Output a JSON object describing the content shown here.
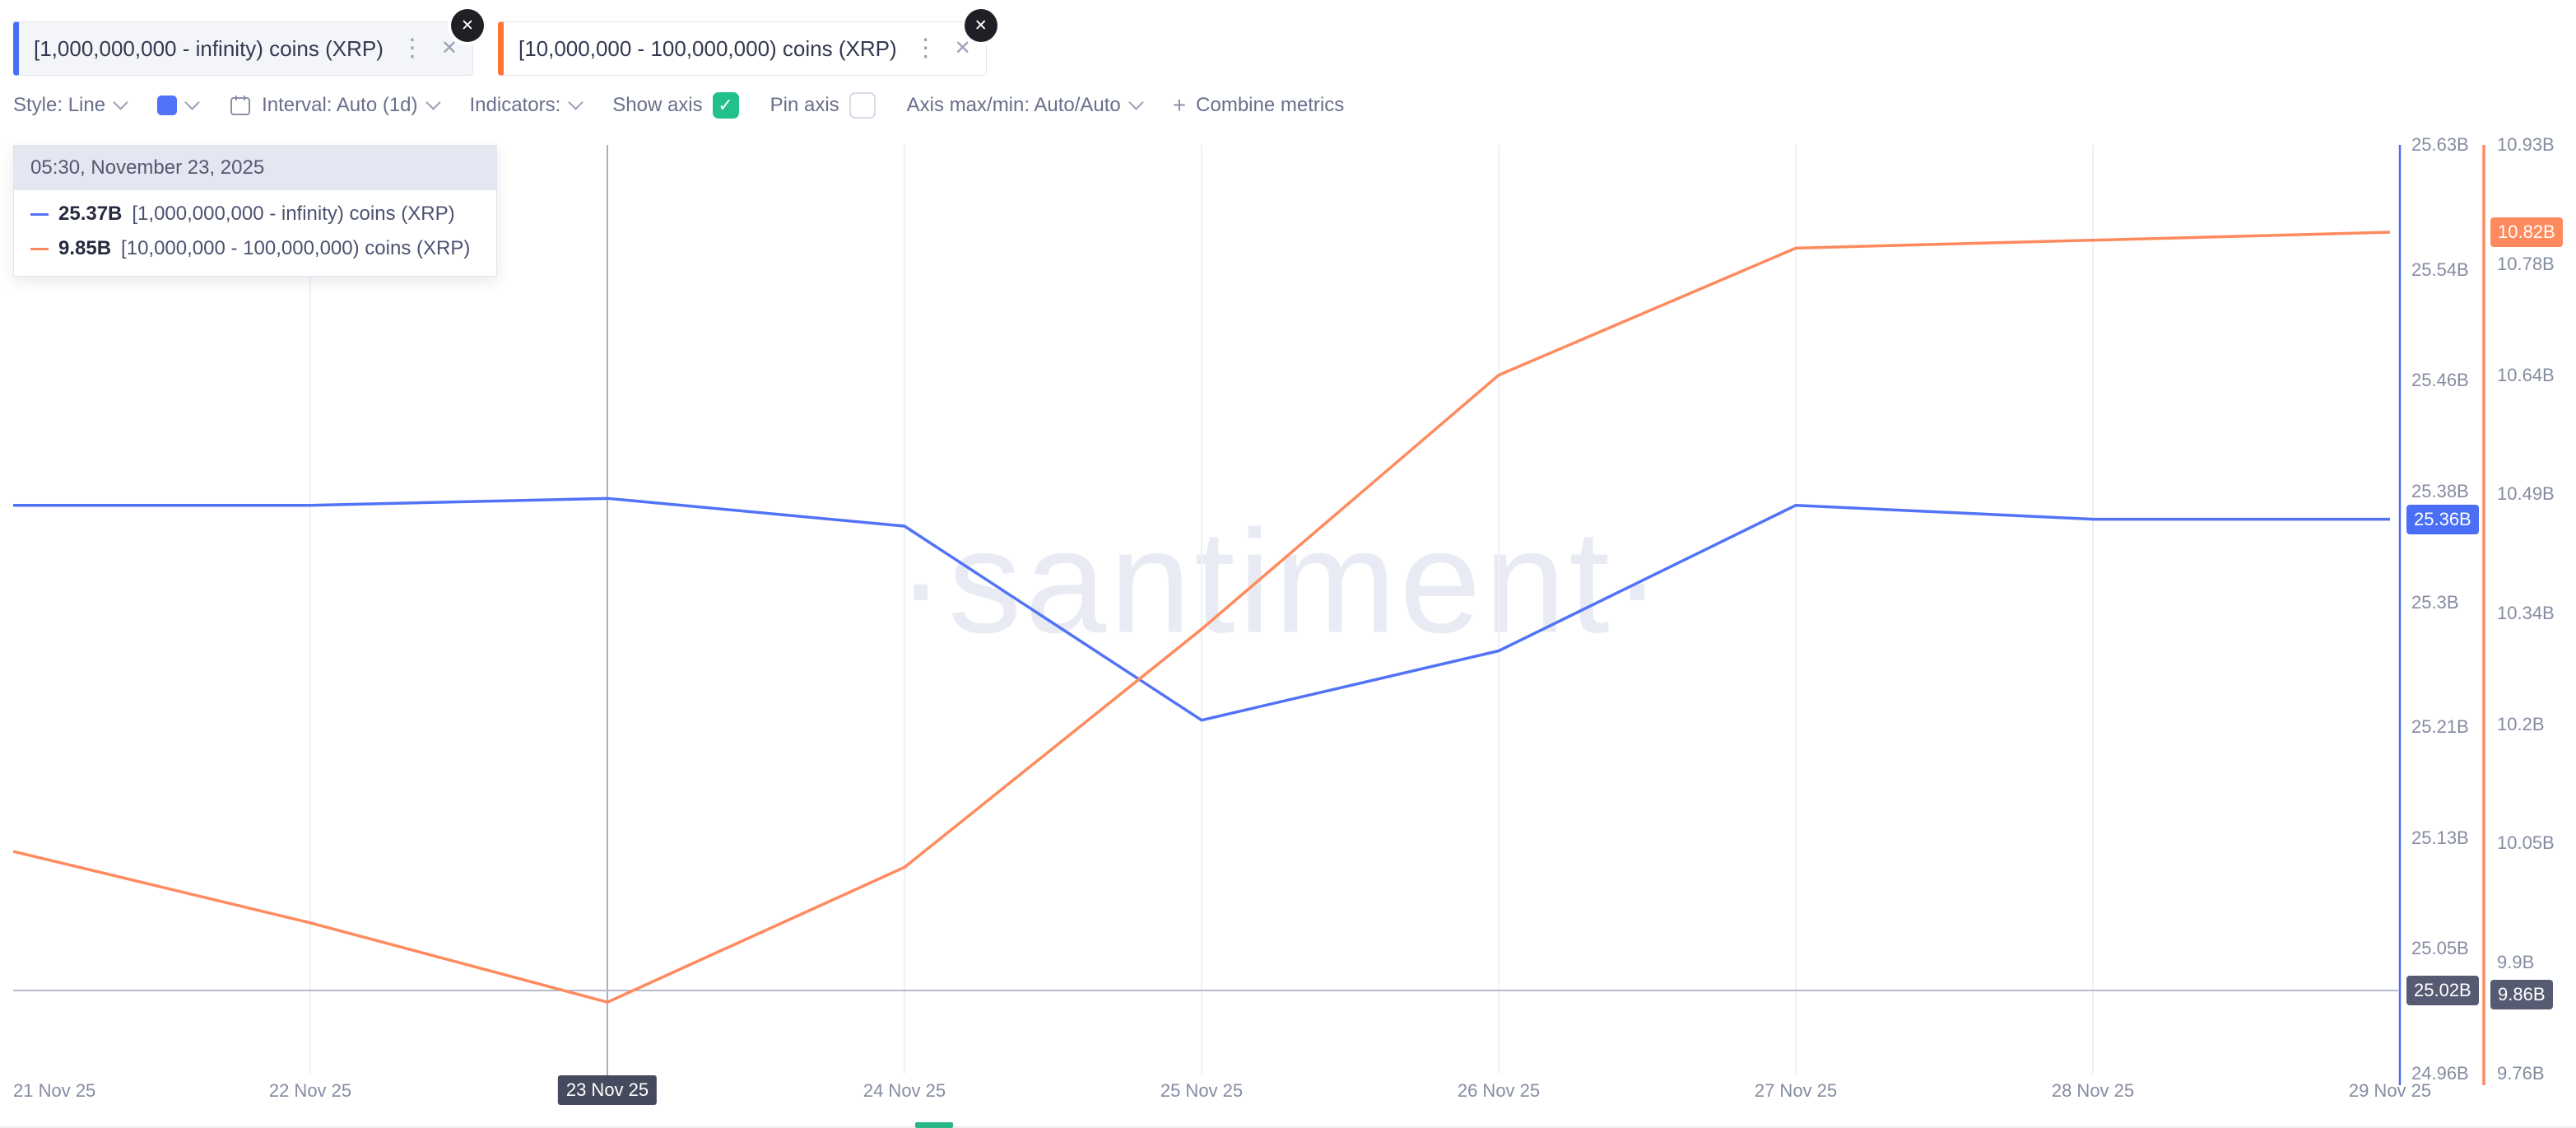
{
  "colors": {
    "blue": "#5273f7",
    "orange_line": "#ff8a5e",
    "orange_accent": "#ff7336",
    "green_check": "#24c08b",
    "crosshair": "#a9afc2",
    "grid": "#eef0f6",
    "badge_dark": "#565b72",
    "watermark": "#e9ebf4"
  },
  "metric_tabs": [
    {
      "label": "[1,000,000,000 - infinity) coins (XRP)",
      "accent": "#4a6ef5"
    },
    {
      "label": "[10,000,000 - 100,000,000) coins (XRP)",
      "accent": "#ff7336"
    }
  ],
  "toolbar": {
    "style_label": "Style: Line",
    "interval_label": "Interval: Auto (1d)",
    "indicators_label": "Indicators:",
    "show_axis_label": "Show axis",
    "pin_axis_label": "Pin axis",
    "axis_maxmin_label": "Axis max/min: Auto/Auto",
    "combine_plus": "+",
    "combine_label": "Combine metrics",
    "check_glyph": "✓"
  },
  "tooltip": {
    "header": "05:30, November 23, 2025",
    "rows": [
      {
        "value": "25.37B",
        "name": "[1,000,000,000 - infinity) coins (XRP)",
        "color": "#5273f7"
      },
      {
        "value": "9.85B",
        "name": "[10,000,000 - 100,000,000) coins (XRP)",
        "color": "#ff8a5e"
      }
    ]
  },
  "watermark": "·santiment·",
  "chart_data": {
    "type": "line",
    "title": "",
    "x": [
      "21 Nov 25",
      "22 Nov 25",
      "23 Nov 25",
      "24 Nov 25",
      "25 Nov 25",
      "26 Nov 25",
      "27 Nov 25",
      "28 Nov 25",
      "29 Nov 25"
    ],
    "series": [
      {
        "name": "[1,000,000,000 - infinity) coins (XRP)",
        "color": "#5273f7",
        "axis": "blue",
        "unit": "B",
        "values": [
          25.37,
          25.37,
          25.375,
          25.355,
          25.215,
          25.265,
          25.37,
          25.36,
          25.36
        ]
      },
      {
        "name": "[10,000,000 - 100,000,000) coins (XRP)",
        "color": "#ff8a5e",
        "axis": "orange",
        "unit": "B",
        "values": [
          10.04,
          9.95,
          9.85,
          10.02,
          10.32,
          10.64,
          10.8,
          10.81,
          10.82
        ]
      }
    ],
    "axes": {
      "blue": {
        "color": "#4a6ef5",
        "min": 24.96,
        "max": 25.63,
        "ticks": [
          "25.63B",
          "25.54B",
          "25.46B",
          "25.38B",
          "25.3B",
          "25.21B",
          "25.13B",
          "25.05B",
          "24.96B"
        ],
        "current_badge": "25.36B",
        "current_value": 25.36,
        "crosshair_badge": "25.02B",
        "crosshair_value": 25.02
      },
      "orange": {
        "color": "#ff8a5e",
        "min": 9.76,
        "max": 10.93,
        "ticks": [
          "10.93B",
          "10.78B",
          "10.64B",
          "10.49B",
          "10.34B",
          "10.2B",
          "10.05B",
          "9.9B",
          "9.76B"
        ],
        "current_badge": "10.82B",
        "current_value": 10.82,
        "crosshair_badge": "9.86B",
        "crosshair_value": 9.86
      }
    },
    "crosshair": {
      "x_index": 2,
      "x_badge": "23 Nov 25"
    },
    "grid": "vertical-only",
    "legend_position": "floating-tooltip-top-left"
  }
}
